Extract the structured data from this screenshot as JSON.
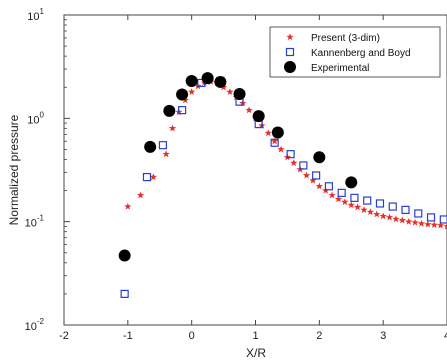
{
  "chart_data": {
    "type": "scatter",
    "xlabel": "X/R",
    "ylabel": "Normalized pressure",
    "xlim": [
      -2,
      4
    ],
    "ylim": [
      0.01,
      10
    ],
    "yscale": "log",
    "x_ticks": [
      {
        "value": -2,
        "label": "-2"
      },
      {
        "value": -1,
        "label": "-1"
      },
      {
        "value": 0,
        "label": "0"
      },
      {
        "value": 1,
        "label": "1"
      },
      {
        "value": 2,
        "label": "2"
      },
      {
        "value": 3,
        "label": "3"
      },
      {
        "value": 4,
        "label": "4"
      }
    ],
    "y_ticks": [
      {
        "value": 0.01,
        "base": "10",
        "exp": "-2"
      },
      {
        "value": 0.1,
        "base": "10",
        "exp": "-1"
      },
      {
        "value": 1,
        "base": "10",
        "exp": "0"
      },
      {
        "value": 10,
        "base": "10",
        "exp": "1"
      }
    ],
    "grid": false,
    "legend_position": "top-right",
    "series": [
      {
        "name": "Present (3-dim)",
        "marker": "star",
        "color": "#e8302a",
        "x": [
          -1.0,
          -0.8,
          -0.6,
          -0.4,
          -0.3,
          -0.2,
          -0.1,
          0.0,
          0.1,
          0.2,
          0.3,
          0.4,
          0.5,
          0.6,
          0.7,
          0.8,
          0.9,
          1.0,
          1.1,
          1.2,
          1.3,
          1.4,
          1.5,
          1.6,
          1.7,
          1.8,
          1.9,
          2.0,
          2.1,
          2.2,
          2.3,
          2.4,
          2.5,
          2.6,
          2.7,
          2.8,
          2.9,
          3.0,
          3.1,
          3.2,
          3.3,
          3.4,
          3.5,
          3.6,
          3.7,
          3.8,
          3.9,
          4.0
        ],
        "values": [
          0.14,
          0.18,
          0.27,
          0.45,
          0.8,
          1.15,
          1.5,
          1.8,
          2.05,
          2.2,
          2.25,
          2.2,
          2.0,
          1.8,
          1.6,
          1.4,
          1.2,
          1.0,
          0.85,
          0.72,
          0.6,
          0.5,
          0.42,
          0.37,
          0.32,
          0.28,
          0.25,
          0.22,
          0.2,
          0.18,
          0.165,
          0.155,
          0.145,
          0.138,
          0.13,
          0.124,
          0.118,
          0.113,
          0.11,
          0.106,
          0.103,
          0.1,
          0.098,
          0.096,
          0.094,
          0.093,
          0.092,
          0.09
        ]
      },
      {
        "name": "Kannenberg and Boyd",
        "marker": "open-square",
        "color": "#2a3fd0",
        "x": [
          -1.05,
          -0.7,
          -0.45,
          -0.15,
          0.15,
          0.45,
          0.75,
          1.05,
          1.3,
          1.55,
          1.75,
          1.95,
          2.15,
          2.35,
          2.55,
          2.75,
          2.95,
          3.15,
          3.35,
          3.55,
          3.75,
          3.95
        ],
        "values": [
          0.02,
          0.27,
          0.55,
          1.2,
          2.2,
          2.3,
          1.45,
          0.88,
          0.58,
          0.45,
          0.35,
          0.28,
          0.22,
          0.19,
          0.17,
          0.16,
          0.15,
          0.14,
          0.13,
          0.12,
          0.11,
          0.105
        ]
      },
      {
        "name": "Experimental",
        "marker": "filled-circle",
        "color": "#000000",
        "x": [
          -1.05,
          -0.65,
          -0.35,
          -0.15,
          0.0,
          0.25,
          0.45,
          0.75,
          1.05,
          1.35,
          2.0,
          2.5
        ],
        "values": [
          0.047,
          0.53,
          1.18,
          1.7,
          2.3,
          2.45,
          2.25,
          1.72,
          1.05,
          0.73,
          0.42,
          0.24
        ]
      }
    ]
  }
}
